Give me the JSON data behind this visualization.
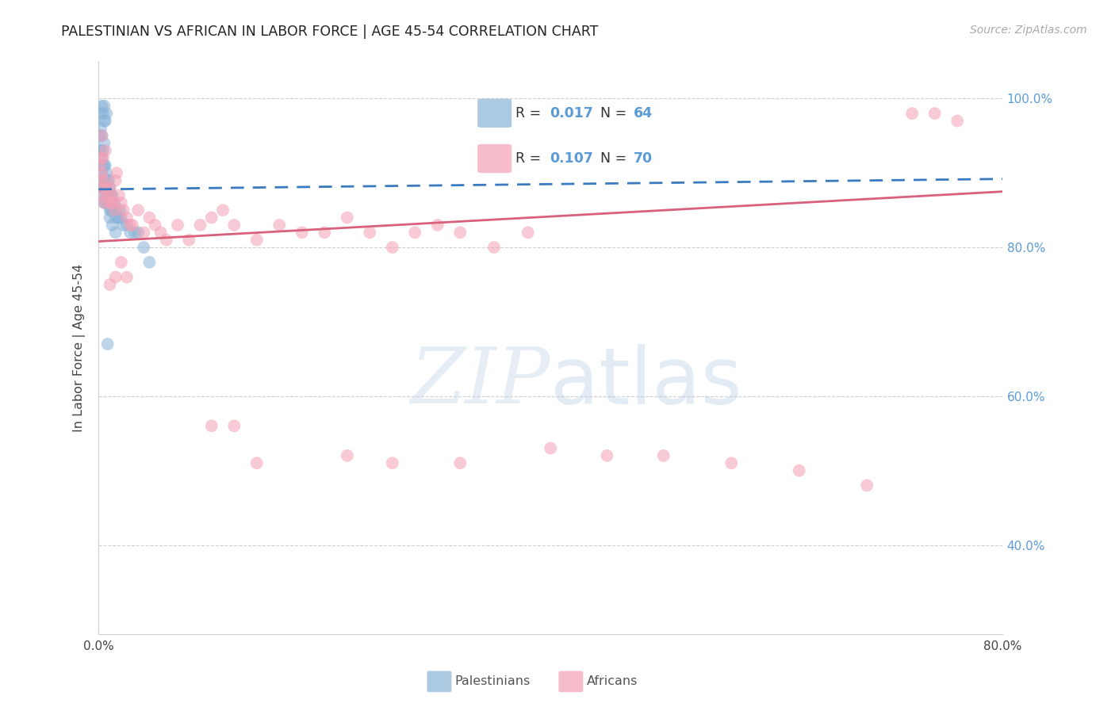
{
  "title": "PALESTINIAN VS AFRICAN IN LABOR FORCE | AGE 45-54 CORRELATION CHART",
  "source": "Source: ZipAtlas.com",
  "ylabel": "In Labor Force | Age 45-54",
  "xlim": [
    0.0,
    0.8
  ],
  "ylim": [
    0.28,
    1.05
  ],
  "xticks": [
    0.0,
    0.1,
    0.2,
    0.3,
    0.4,
    0.5,
    0.6,
    0.7,
    0.8
  ],
  "xticklabels": [
    "0.0%",
    "",
    "",
    "",
    "",
    "",
    "",
    "",
    "80.0%"
  ],
  "yticks_right": [
    0.4,
    0.6,
    0.8,
    1.0
  ],
  "ytick_right_labels": [
    "40.0%",
    "60.0%",
    "80.0%",
    "100.0%"
  ],
  "blue_color": "#8ab4d8",
  "pink_color": "#f4a0b5",
  "blue_line_color": "#3a7abf",
  "pink_line_color": "#d9607a",
  "blue_x": [
    0.001,
    0.001,
    0.002,
    0.002,
    0.002,
    0.003,
    0.003,
    0.003,
    0.003,
    0.004,
    0.004,
    0.004,
    0.004,
    0.005,
    0.005,
    0.005,
    0.005,
    0.005,
    0.006,
    0.006,
    0.006,
    0.006,
    0.007,
    0.007,
    0.007,
    0.008,
    0.008,
    0.008,
    0.009,
    0.009,
    0.009,
    0.01,
    0.01,
    0.01,
    0.011,
    0.011,
    0.012,
    0.012,
    0.013,
    0.014,
    0.015,
    0.016,
    0.017,
    0.018,
    0.019,
    0.02,
    0.022,
    0.025,
    0.028,
    0.032,
    0.035,
    0.04,
    0.045,
    0.002,
    0.003,
    0.004,
    0.005,
    0.005,
    0.006,
    0.007,
    0.008,
    0.01,
    0.012,
    0.015
  ],
  "blue_y": [
    0.93,
    0.95,
    0.91,
    0.93,
    0.96,
    0.88,
    0.9,
    0.92,
    0.95,
    0.88,
    0.89,
    0.91,
    0.93,
    0.86,
    0.87,
    0.89,
    0.91,
    0.94,
    0.86,
    0.88,
    0.89,
    0.91,
    0.87,
    0.88,
    0.9,
    0.86,
    0.87,
    0.89,
    0.86,
    0.87,
    0.89,
    0.85,
    0.87,
    0.88,
    0.85,
    0.87,
    0.85,
    0.87,
    0.85,
    0.86,
    0.84,
    0.85,
    0.84,
    0.84,
    0.85,
    0.84,
    0.83,
    0.83,
    0.82,
    0.82,
    0.82,
    0.8,
    0.78,
    0.98,
    0.99,
    0.98,
    0.97,
    0.99,
    0.97,
    0.98,
    0.67,
    0.84,
    0.83,
    0.82
  ],
  "pink_x": [
    0.001,
    0.002,
    0.002,
    0.003,
    0.003,
    0.003,
    0.004,
    0.004,
    0.005,
    0.005,
    0.006,
    0.007,
    0.008,
    0.009,
    0.01,
    0.011,
    0.012,
    0.013,
    0.014,
    0.015,
    0.016,
    0.018,
    0.02,
    0.022,
    0.025,
    0.028,
    0.03,
    0.035,
    0.04,
    0.045,
    0.05,
    0.055,
    0.06,
    0.07,
    0.08,
    0.09,
    0.1,
    0.11,
    0.12,
    0.14,
    0.16,
    0.18,
    0.2,
    0.22,
    0.24,
    0.26,
    0.28,
    0.3,
    0.32,
    0.35,
    0.38,
    0.1,
    0.12,
    0.14,
    0.22,
    0.26,
    0.32,
    0.4,
    0.45,
    0.5,
    0.56,
    0.62,
    0.68,
    0.72,
    0.74,
    0.76,
    0.01,
    0.015,
    0.02,
    0.025
  ],
  "pink_y": [
    0.91,
    0.89,
    0.92,
    0.87,
    0.9,
    0.95,
    0.88,
    0.92,
    0.86,
    0.89,
    0.93,
    0.88,
    0.87,
    0.86,
    0.88,
    0.87,
    0.86,
    0.86,
    0.85,
    0.89,
    0.9,
    0.87,
    0.86,
    0.85,
    0.84,
    0.83,
    0.83,
    0.85,
    0.82,
    0.84,
    0.83,
    0.82,
    0.81,
    0.83,
    0.81,
    0.83,
    0.84,
    0.85,
    0.83,
    0.81,
    0.83,
    0.82,
    0.82,
    0.84,
    0.82,
    0.8,
    0.82,
    0.83,
    0.82,
    0.8,
    0.82,
    0.56,
    0.56,
    0.51,
    0.52,
    0.51,
    0.51,
    0.53,
    0.52,
    0.52,
    0.51,
    0.5,
    0.48,
    0.98,
    0.98,
    0.97,
    0.75,
    0.76,
    0.78,
    0.76
  ],
  "blue_trend_x": [
    0.0,
    0.8
  ],
  "blue_trend_y": [
    0.878,
    0.892
  ],
  "pink_trend_x": [
    0.0,
    0.8
  ],
  "pink_trend_y": [
    0.808,
    0.875
  ],
  "watermark_zip": "ZIP",
  "watermark_atlas": "atlas",
  "legend_entries": [
    {
      "label_r": "R = 0.017",
      "label_n": "N = 64",
      "color": "#8ab4d8"
    },
    {
      "label_r": "R = 0.107",
      "label_n": "N = 70",
      "color": "#f4a0b5"
    }
  ],
  "bottom_legend": [
    {
      "label": "Palestinians",
      "color": "#8ab4d8"
    },
    {
      "label": "Africans",
      "color": "#f4a0b5"
    }
  ],
  "accent_color": "#5b9bd5",
  "grid_color": "#d0d0d0",
  "text_color": "#444444"
}
